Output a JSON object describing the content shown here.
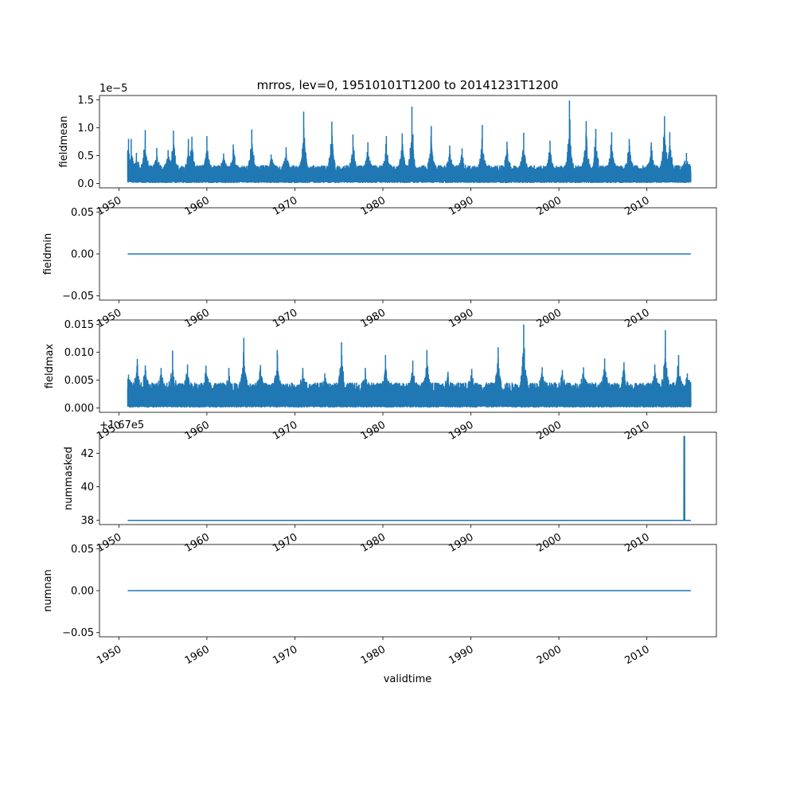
{
  "figure": {
    "title": "mrros, lev=0, 19510101T1200 to 20141231T1200",
    "xlabel": "validtime",
    "line_color": "#1f77b4"
  },
  "chart_data": [
    {
      "type": "line",
      "ylabel": "fieldmean",
      "offset_text": "1e−5",
      "xlim": [
        1947.8,
        2017.9
      ],
      "ylim": [
        -0.08,
        1.58
      ],
      "yticks": [
        0.0,
        0.5,
        1.0,
        1.5
      ],
      "ytick_labels": [
        "0.0",
        "0.5",
        "1.0",
        "1.5"
      ],
      "xtick_values": [
        1950,
        1960,
        1970,
        1980,
        1990,
        2000,
        2010
      ],
      "xtick_labels": [
        "1950",
        "1960",
        "1970",
        "1980",
        "1990",
        "2000",
        "2010"
      ],
      "x_range": [
        1951.0,
        2015.0
      ],
      "baseline": 0.05,
      "band_top": 0.32,
      "spikes": [
        {
          "x": 1951.1,
          "y": 0.8
        },
        {
          "x": 1951.4,
          "y": 0.8
        },
        {
          "x": 1952.0,
          "y": 0.55
        },
        {
          "x": 1953.0,
          "y": 0.96
        },
        {
          "x": 1954.3,
          "y": 0.64
        },
        {
          "x": 1955.6,
          "y": 0.6
        },
        {
          "x": 1956.2,
          "y": 0.95
        },
        {
          "x": 1957.9,
          "y": 0.8
        },
        {
          "x": 1958.3,
          "y": 0.84
        },
        {
          "x": 1960.0,
          "y": 0.85
        },
        {
          "x": 1961.9,
          "y": 0.54
        },
        {
          "x": 1963.0,
          "y": 0.7
        },
        {
          "x": 1965.1,
          "y": 0.97
        },
        {
          "x": 1967.3,
          "y": 0.52
        },
        {
          "x": 1969.0,
          "y": 0.65
        },
        {
          "x": 1971.0,
          "y": 1.29
        },
        {
          "x": 1974.2,
          "y": 1.11
        },
        {
          "x": 1976.6,
          "y": 0.88
        },
        {
          "x": 1978.3,
          "y": 0.74
        },
        {
          "x": 1980.4,
          "y": 0.85
        },
        {
          "x": 1982.2,
          "y": 0.9
        },
        {
          "x": 1983.3,
          "y": 1.38
        },
        {
          "x": 1985.5,
          "y": 1.03
        },
        {
          "x": 1987.6,
          "y": 0.68
        },
        {
          "x": 1989.0,
          "y": 0.63
        },
        {
          "x": 1991.3,
          "y": 1.05
        },
        {
          "x": 1994.1,
          "y": 0.75
        },
        {
          "x": 1996.0,
          "y": 0.91
        },
        {
          "x": 1999.0,
          "y": 0.77
        },
        {
          "x": 2001.2,
          "y": 1.49
        },
        {
          "x": 2003.1,
          "y": 1.12
        },
        {
          "x": 2004.2,
          "y": 0.98
        },
        {
          "x": 2006.0,
          "y": 0.92
        },
        {
          "x": 2008.0,
          "y": 0.8
        },
        {
          "x": 2010.5,
          "y": 0.74
        },
        {
          "x": 2012.0,
          "y": 1.21
        },
        {
          "x": 2012.6,
          "y": 0.92
        },
        {
          "x": 2014.5,
          "y": 0.55
        }
      ]
    },
    {
      "type": "line",
      "ylabel": "fieldmin",
      "offset_text": "",
      "xlim": [
        1947.8,
        2017.9
      ],
      "ylim": [
        -0.055,
        0.055
      ],
      "yticks": [
        -0.05,
        0.0,
        0.05
      ],
      "ytick_labels": [
        "−0.05",
        "0.00",
        "0.05"
      ],
      "xtick_values": [
        1950,
        1960,
        1970,
        1980,
        1990,
        2000,
        2010
      ],
      "xtick_labels": [
        "1950",
        "1960",
        "1970",
        "1980",
        "1990",
        "2000",
        "2010"
      ],
      "x": [
        1951.0,
        2015.0
      ],
      "y": [
        0.0,
        0.0
      ]
    },
    {
      "type": "line",
      "ylabel": "fieldmax",
      "offset_text": "",
      "xlim": [
        1947.8,
        2017.9
      ],
      "ylim": [
        -0.0008,
        0.0158
      ],
      "yticks": [
        0.0,
        0.005,
        0.01,
        0.015
      ],
      "ytick_labels": [
        "0.000",
        "0.005",
        "0.010",
        "0.015"
      ],
      "xtick_values": [
        1950,
        1960,
        1970,
        1980,
        1990,
        2000,
        2010
      ],
      "xtick_labels": [
        "1950",
        "1960",
        "1970",
        "1980",
        "1990",
        "2000",
        "2010"
      ],
      "x_range": [
        1951.0,
        2015.0
      ],
      "baseline": 0.0005,
      "band_top": 0.0045,
      "spikes": [
        {
          "x": 1951.1,
          "y": 0.006
        },
        {
          "x": 1952.1,
          "y": 0.0088
        },
        {
          "x": 1953.0,
          "y": 0.0076
        },
        {
          "x": 1954.8,
          "y": 0.0072
        },
        {
          "x": 1956.1,
          "y": 0.0103
        },
        {
          "x": 1957.8,
          "y": 0.0078
        },
        {
          "x": 1959.9,
          "y": 0.0076
        },
        {
          "x": 1962.5,
          "y": 0.0072
        },
        {
          "x": 1964.2,
          "y": 0.0126
        },
        {
          "x": 1966.1,
          "y": 0.0077
        },
        {
          "x": 1968.0,
          "y": 0.0104
        },
        {
          "x": 1970.9,
          "y": 0.0072
        },
        {
          "x": 1973.4,
          "y": 0.0062
        },
        {
          "x": 1975.3,
          "y": 0.0118
        },
        {
          "x": 1978.0,
          "y": 0.0072
        },
        {
          "x": 1980.3,
          "y": 0.0095
        },
        {
          "x": 1983.4,
          "y": 0.0085
        },
        {
          "x": 1985.0,
          "y": 0.0104
        },
        {
          "x": 1987.4,
          "y": 0.0065
        },
        {
          "x": 1990.1,
          "y": 0.007
        },
        {
          "x": 1993.1,
          "y": 0.0109
        },
        {
          "x": 1996.0,
          "y": 0.015
        },
        {
          "x": 1998.1,
          "y": 0.0073
        },
        {
          "x": 2000.4,
          "y": 0.0068
        },
        {
          "x": 2002.8,
          "y": 0.0073
        },
        {
          "x": 2005.2,
          "y": 0.0089
        },
        {
          "x": 2007.4,
          "y": 0.0082
        },
        {
          "x": 2010.9,
          "y": 0.0078
        },
        {
          "x": 2012.1,
          "y": 0.014
        },
        {
          "x": 2013.6,
          "y": 0.0095
        },
        {
          "x": 2014.6,
          "y": 0.0062
        }
      ]
    },
    {
      "type": "line",
      "ylabel": "nummasked",
      "offset_text": "+1.67e5",
      "xlim": [
        1947.8,
        2017.9
      ],
      "ylim": [
        37.75,
        43.25
      ],
      "yticks": [
        38,
        40,
        42
      ],
      "ytick_labels": [
        "38",
        "40",
        "42"
      ],
      "xtick_values": [
        1950,
        1960,
        1970,
        1980,
        1990,
        2000,
        2010
      ],
      "xtick_labels": [
        "1950",
        "1960",
        "1970",
        "1980",
        "1990",
        "2000",
        "2010"
      ],
      "x": [
        1951.0,
        2014.2,
        2014.22,
        2014.28,
        2014.3,
        2015.0
      ],
      "y": [
        38,
        38,
        43,
        43,
        38,
        38
      ]
    },
    {
      "type": "line",
      "ylabel": "numnan",
      "offset_text": "",
      "xlim": [
        1947.8,
        2017.9
      ],
      "ylim": [
        -0.055,
        0.055
      ],
      "yticks": [
        -0.05,
        0.0,
        0.05
      ],
      "ytick_labels": [
        "−0.05",
        "0.00",
        "0.05"
      ],
      "xtick_values": [
        1950,
        1960,
        1970,
        1980,
        1990,
        2000,
        2010
      ],
      "xtick_labels": [
        "1950",
        "1960",
        "1970",
        "1980",
        "1990",
        "2000",
        "2010"
      ],
      "x": [
        1951.0,
        2015.0
      ],
      "y": [
        0.0,
        0.0
      ]
    }
  ]
}
